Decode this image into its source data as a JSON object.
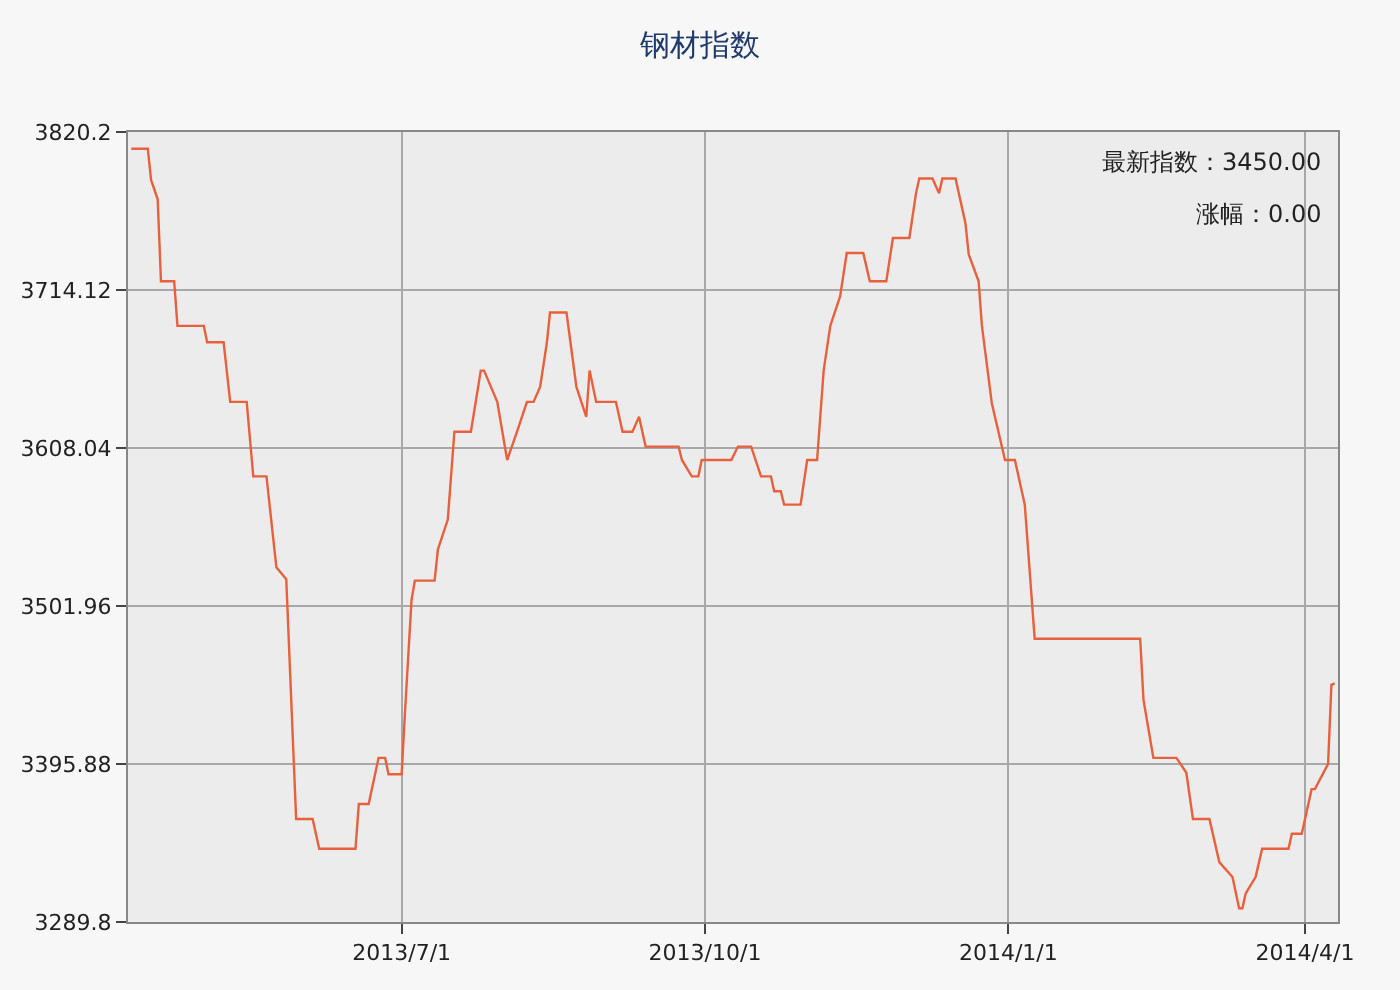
{
  "chart_data": {
    "type": "line",
    "title": "钢材指数",
    "x": [
      "2013-04-10",
      "2013-04-15",
      "2013-04-16",
      "2013-04-18",
      "2013-04-19",
      "2013-04-23",
      "2013-04-24",
      "2013-05-02",
      "2013-05-03",
      "2013-05-08",
      "2013-05-10",
      "2013-05-15",
      "2013-05-17",
      "2013-05-21",
      "2013-05-24",
      "2013-05-27",
      "2013-05-30",
      "2013-06-04",
      "2013-06-06",
      "2013-06-17",
      "2013-06-18",
      "2013-06-21",
      "2013-06-24",
      "2013-06-26",
      "2013-06-27",
      "2013-07-01",
      "2013-07-02",
      "2013-07-04",
      "2013-07-05",
      "2013-07-11",
      "2013-07-12",
      "2013-07-15",
      "2013-07-17",
      "2013-07-22",
      "2013-07-25",
      "2013-07-26",
      "2013-07-30",
      "2013-08-02",
      "2013-08-05",
      "2013-08-08",
      "2013-08-10",
      "2013-08-12",
      "2013-08-14",
      "2013-08-15",
      "2013-08-20",
      "2013-08-23",
      "2013-08-26",
      "2013-08-27",
      "2013-08-29",
      "2013-09-04",
      "2013-09-06",
      "2013-09-09",
      "2013-09-11",
      "2013-09-13",
      "2013-09-23",
      "2013-09-24",
      "2013-09-27",
      "2013-09-29",
      "2013-09-30",
      "2013-10-09",
      "2013-10-11",
      "2013-10-15",
      "2013-10-18",
      "2013-10-21",
      "2013-10-22",
      "2013-10-24",
      "2013-10-25",
      "2013-10-30",
      "2013-11-01",
      "2013-11-04",
      "2013-11-06",
      "2013-11-08",
      "2013-11-11",
      "2013-11-13",
      "2013-11-18",
      "2013-11-20",
      "2013-11-25",
      "2013-11-27",
      "2013-12-02",
      "2013-12-04",
      "2013-12-05",
      "2013-12-09",
      "2013-12-11",
      "2013-12-12",
      "2013-12-16",
      "2013-12-19",
      "2013-12-20",
      "2013-12-23",
      "2013-12-24",
      "2013-12-27",
      "2013-12-31",
      "2014-01-03",
      "2014-01-06",
      "2014-01-09",
      "2014-02-10",
      "2014-02-11",
      "2014-02-14",
      "2014-02-21",
      "2014-02-24",
      "2014-02-26",
      "2014-03-03",
      "2014-03-06",
      "2014-03-10",
      "2014-03-12",
      "2014-03-13",
      "2014-03-14",
      "2014-03-17",
      "2014-03-19",
      "2014-03-27",
      "2014-03-28",
      "2014-03-31",
      "2014-04-03",
      "2014-04-04",
      "2014-04-08",
      "2014-04-09",
      "2014-04-10"
    ],
    "series": [
      {
        "color": "#e8603c",
        "values": [
          3809,
          3809,
          3788,
          3775,
          3720,
          3720,
          3690,
          3690,
          3679,
          3679,
          3639,
          3639,
          3589,
          3589,
          3528,
          3520,
          3359,
          3359,
          3339,
          3339,
          3369,
          3369,
          3400,
          3400,
          3389,
          3389,
          3430,
          3506,
          3519,
          3519,
          3540,
          3560,
          3619,
          3619,
          3660,
          3660,
          3639,
          3600,
          3619,
          3639,
          3639,
          3649,
          3678,
          3699,
          3699,
          3649,
          3629,
          3660,
          3639,
          3639,
          3619,
          3619,
          3629,
          3609,
          3609,
          3600,
          3589,
          3589,
          3600,
          3600,
          3609,
          3609,
          3589,
          3589,
          3579,
          3579,
          3570,
          3570,
          3600,
          3600,
          3660,
          3690,
          3710,
          3739,
          3739,
          3720,
          3720,
          3749,
          3749,
          3779,
          3789,
          3789,
          3779,
          3789,
          3789,
          3759,
          3738,
          3720,
          3690,
          3638,
          3600,
          3600,
          3570,
          3480,
          3480,
          3439,
          3400,
          3400,
          3390,
          3359,
          3359,
          3330,
          3320,
          3299,
          3299,
          3309,
          3320,
          3339,
          3339,
          3349,
          3349,
          3379,
          3379,
          3396,
          3449,
          3450
        ]
      }
    ],
    "xlim": [
      "2013-04-09",
      "2014-04-11"
    ],
    "xticks": [
      {
        "value": "2013-07-01",
        "label": "2013/7/1"
      },
      {
        "value": "2013-10-01",
        "label": "2013/10/1"
      },
      {
        "value": "2014-01-01",
        "label": "2014/1/1"
      },
      {
        "value": "2014-04-01",
        "label": "2014/4/1"
      }
    ],
    "ylim": [
      3289.8,
      3820.2
    ],
    "yticks": [
      3289.8,
      3395.88,
      3501.96,
      3608.04,
      3714.12,
      3820.2
    ],
    "grid": true,
    "annotations": [
      "最新指数：3450.00",
      "涨幅：0.00"
    ]
  }
}
